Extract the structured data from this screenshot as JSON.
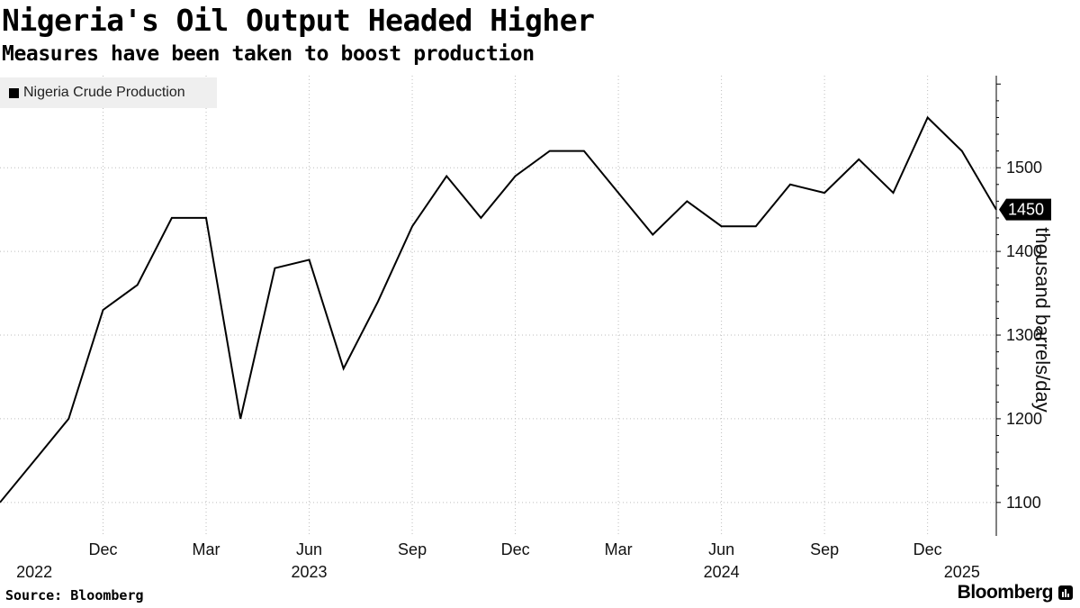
{
  "header": {
    "title": "Nigeria's Oil Output Headed Higher",
    "subtitle": "Measures have been taken to boost production"
  },
  "footer": {
    "source": "Source: Bloomberg",
    "brand": "Bloomberg"
  },
  "chart_data": {
    "type": "line",
    "ylabel": "thousand barrels/day",
    "ylim": [
      1060,
      1610
    ],
    "y_ticks": [
      1100,
      1200,
      1300,
      1400,
      1500
    ],
    "grid": "vertical and horizontal dotted",
    "legend_position": "top-left",
    "x_ticks": [
      {
        "date": "2022-12",
        "label": "Dec"
      },
      {
        "date": "2023-03",
        "label": "Mar"
      },
      {
        "date": "2023-06",
        "label": "Jun"
      },
      {
        "date": "2023-09",
        "label": "Sep"
      },
      {
        "date": "2023-12",
        "label": "Dec"
      },
      {
        "date": "2024-03",
        "label": "Mar"
      },
      {
        "date": "2024-06",
        "label": "Jun"
      },
      {
        "date": "2024-09",
        "label": "Sep"
      },
      {
        "date": "2024-12",
        "label": "Dec"
      }
    ],
    "year_labels": [
      {
        "date": "2022-10",
        "label": "2022"
      },
      {
        "date": "2023-06",
        "label": "2023"
      },
      {
        "date": "2024-06",
        "label": "2024"
      },
      {
        "date": "2025-01",
        "label": "2025"
      }
    ],
    "last_value_label": "1450",
    "series": [
      {
        "name": "Nigeria Crude Production",
        "color": "#000000",
        "x": [
          "2022-09",
          "2022-10",
          "2022-11",
          "2022-12",
          "2023-01",
          "2023-02",
          "2023-03",
          "2023-04",
          "2023-05",
          "2023-06",
          "2023-07",
          "2023-08",
          "2023-09",
          "2023-10",
          "2023-11",
          "2023-12",
          "2024-01",
          "2024-02",
          "2024-03",
          "2024-04",
          "2024-05",
          "2024-06",
          "2024-07",
          "2024-08",
          "2024-09",
          "2024-10",
          "2024-11",
          "2024-12",
          "2025-01",
          "2025-02"
        ],
        "values": [
          1100,
          1150,
          1200,
          1330,
          1360,
          1440,
          1440,
          1200,
          1380,
          1390,
          1260,
          1340,
          1430,
          1490,
          1440,
          1490,
          1520,
          1520,
          1470,
          1420,
          1460,
          1430,
          1430,
          1480,
          1470,
          1510,
          1470,
          1560,
          1520,
          1450
        ]
      }
    ]
  }
}
